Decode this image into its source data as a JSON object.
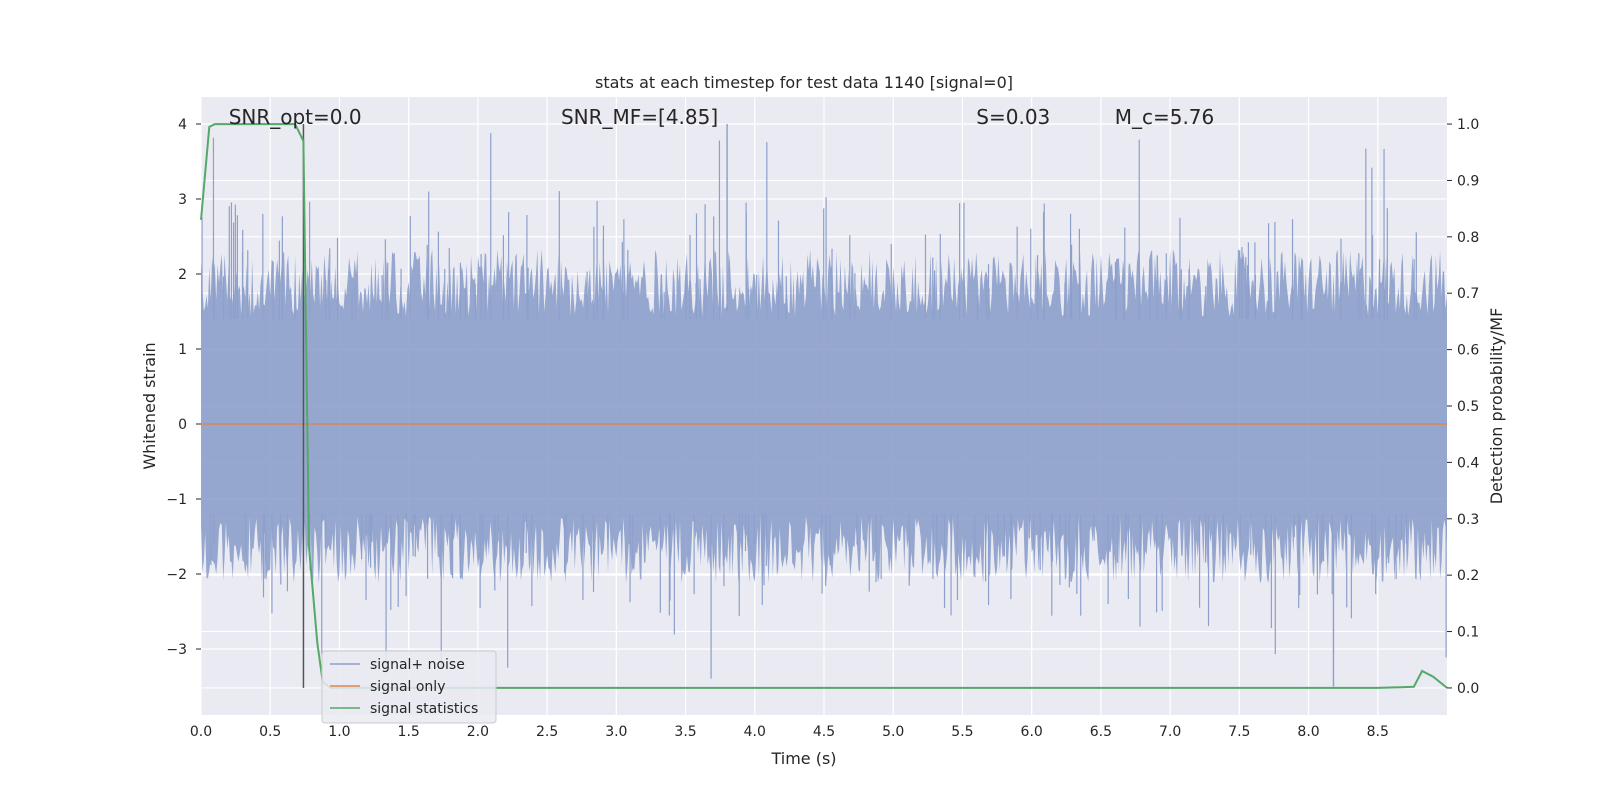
{
  "chart_data": {
    "type": "line",
    "title": "stats at each timestep for test data 1140 [signal=0]",
    "xlabel": "Time (s)",
    "ylabel": "Whitened strain",
    "y2label": "Detection probability/MF",
    "xlim": [
      0.0,
      9.0
    ],
    "ylim": [
      -3.88,
      4.36
    ],
    "y2lim": [
      -0.048,
      1.048
    ],
    "x_ticks": [
      0.0,
      0.5,
      1.0,
      1.5,
      2.0,
      2.5,
      3.0,
      3.5,
      4.0,
      4.5,
      5.0,
      5.5,
      6.0,
      6.5,
      7.0,
      7.5,
      8.0,
      8.5
    ],
    "x_tick_labels": [
      "0.0",
      "0.5",
      "1.0",
      "1.5",
      "2.0",
      "2.5",
      "3.0",
      "3.5",
      "4.0",
      "4.5",
      "5.0",
      "5.5",
      "6.0",
      "6.5",
      "7.0",
      "7.5",
      "8.0",
      "8.5"
    ],
    "y_ticks": [
      -3,
      -2,
      -1,
      0,
      1,
      2,
      3,
      4
    ],
    "y_tick_labels": [
      "−3",
      "−2",
      "−1",
      "0",
      "1",
      "2",
      "3",
      "4"
    ],
    "y2_ticks": [
      0.0,
      0.1,
      0.2,
      0.3,
      0.4,
      0.5,
      0.6,
      0.7,
      0.8,
      0.9,
      1.0
    ],
    "y2_tick_labels": [
      "0.0",
      "0.1",
      "0.2",
      "0.3",
      "0.4",
      "0.5",
      "0.6",
      "0.7",
      "0.8",
      "0.9",
      "1.0"
    ],
    "grid": true,
    "legend_position": "lower-left",
    "annotations": [
      {
        "id": "snr-opt",
        "text": "SNR_opt=0.0",
        "x": 0.2
      },
      {
        "id": "snr-mf",
        "text": "SNR_MF=[4.85]",
        "x": 2.6
      },
      {
        "id": "s-value",
        "text": "S=0.03",
        "x": 5.6
      },
      {
        "id": "mc-value",
        "text": "M_c=5.76",
        "x": 6.6
      }
    ],
    "vline_x": 0.74,
    "series": [
      {
        "name": "signal+ noise",
        "axis": "left",
        "color": "#8da0cb",
        "amplitude_range": [
          -3.5,
          4.0
        ],
        "description_values": {
          "typical_band": [
            -1.5,
            1.7
          ],
          "max": 4.0,
          "min": -3.5
        }
      },
      {
        "name": "signal only",
        "axis": "left",
        "color": "#dd8452",
        "x": [
          0.0,
          9.0
        ],
        "values": [
          0.0,
          0.0
        ]
      },
      {
        "name": "signal statistics",
        "axis": "right",
        "color": "#55a868",
        "x": [
          0.0,
          0.06,
          0.1,
          0.2,
          0.3,
          0.4,
          0.5,
          0.6,
          0.68,
          0.74,
          0.78,
          0.84,
          0.88,
          0.94,
          1.0,
          1.5,
          2.0,
          2.2,
          2.5,
          3.0,
          4.0,
          5.0,
          6.0,
          7.0,
          8.0,
          8.5,
          8.76,
          8.82,
          8.9,
          9.0
        ],
        "values": [
          0.83,
          0.995,
          1.0,
          1.0,
          1.0,
          1.0,
          1.0,
          1.0,
          1.0,
          0.97,
          0.25,
          0.08,
          0.01,
          0.0,
          0.0,
          0.0,
          0.0,
          0.0,
          0.0,
          0.0,
          0.0,
          0.0,
          0.0,
          0.0,
          0.0,
          0.0,
          0.002,
          0.03,
          0.02,
          0.0
        ]
      }
    ]
  }
}
